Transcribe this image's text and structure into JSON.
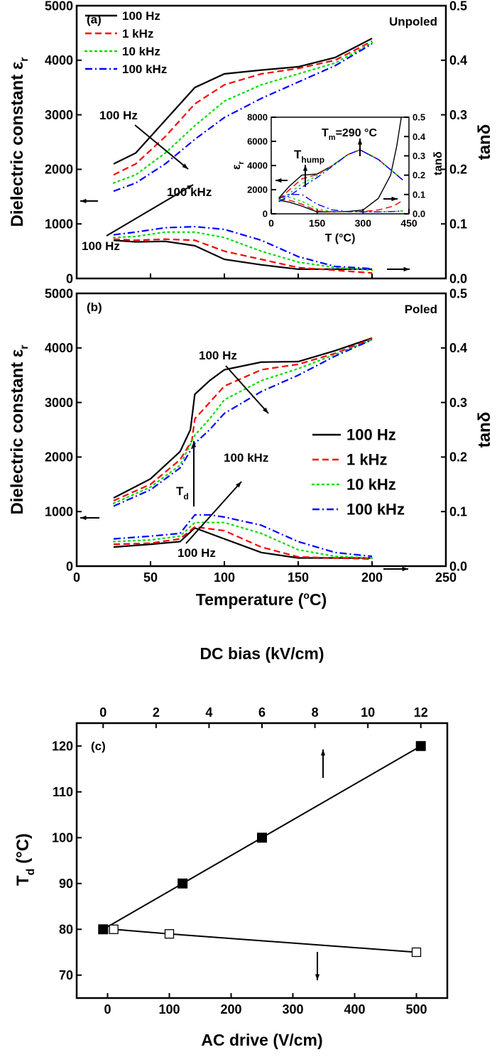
{
  "chart_data": [
    {
      "type": "line",
      "panel_label": "(a)",
      "condition": "Unpoled",
      "xlim": [
        0,
        250
      ],
      "ylabel": "Dielectric constant ε",
      "ylabel_sub": "r",
      "y2label": "tanδ",
      "ylim": [
        0,
        5000
      ],
      "y2lim": [
        0,
        0.5
      ],
      "xticks": [
        "0",
        "50",
        "100",
        "150",
        "200",
        "250"
      ],
      "yticks": [
        "0",
        "1000",
        "2000",
        "3000",
        "4000",
        "5000"
      ],
      "y2ticks": [
        "0.0",
        "0.1",
        "0.2",
        "0.3",
        "0.4",
        "0.5"
      ],
      "legend": {
        "placement": "top-left"
      },
      "series": [
        {
          "name": "100 Hz",
          "color": "#000000",
          "style": "solid",
          "eps": {
            "x": [
              25,
              40,
              60,
              80,
              100,
              125,
              150,
              175,
              200
            ],
            "y": [
              2100,
              2300,
              2900,
              3500,
              3750,
              3820,
              3880,
              4050,
              4400
            ]
          },
          "tan": {
            "x": [
              25,
              40,
              60,
              80,
              100,
              125,
              150,
              175,
              200
            ],
            "y": [
              0.07,
              0.067,
              0.068,
              0.06,
              0.035,
              0.025,
              0.017,
              0.017,
              0.017
            ]
          }
        },
        {
          "name": "1 kHz",
          "color": "#ff0000",
          "style": "dash",
          "eps": {
            "x": [
              25,
              40,
              60,
              80,
              100,
              125,
              150,
              175,
              200
            ],
            "y": [
              1900,
              2100,
              2600,
              3200,
              3550,
              3750,
              3850,
              4000,
              4350
            ]
          },
          "tan": {
            "x": [
              25,
              40,
              60,
              80,
              100,
              125,
              150,
              175,
              200
            ],
            "y": [
              0.072,
              0.07,
              0.072,
              0.07,
              0.05,
              0.035,
              0.02,
              0.015,
              0.01
            ]
          }
        },
        {
          "name": "10 kHz",
          "color": "#00dd00",
          "style": "dot",
          "eps": {
            "x": [
              25,
              40,
              60,
              80,
              100,
              125,
              150,
              175,
              200
            ],
            "y": [
              1750,
              1900,
              2300,
              2800,
              3250,
              3550,
              3750,
              3950,
              4320
            ]
          },
          "tan": {
            "x": [
              25,
              40,
              60,
              80,
              100,
              125,
              150,
              175,
              200
            ],
            "y": [
              0.075,
              0.077,
              0.085,
              0.085,
              0.075,
              0.05,
              0.03,
              0.02,
              0.015
            ]
          }
        },
        {
          "name": "100 kHz",
          "color": "#0000ff",
          "style": "dashdot",
          "eps": {
            "x": [
              25,
              40,
              60,
              80,
              100,
              125,
              150,
              175,
              200
            ],
            "y": [
              1600,
              1750,
              2100,
              2550,
              2950,
              3300,
              3600,
              3900,
              4300
            ]
          },
          "tan": {
            "x": [
              25,
              40,
              60,
              80,
              100,
              125,
              150,
              175,
              200
            ],
            "y": [
              0.08,
              0.085,
              0.093,
              0.095,
              0.09,
              0.07,
              0.04,
              0.022,
              0.018
            ]
          }
        }
      ],
      "annotations": [
        "100 Hz",
        "100 kHz",
        "100 Hz"
      ],
      "inset": {
        "xlabel": "T (°C)",
        "ylabel": "ε",
        "ylabel_sub": "r",
        "y2label": "tanδ",
        "xlim": [
          0,
          450
        ],
        "ylim": [
          0,
          8000
        ],
        "y2lim": [
          0,
          0.5
        ],
        "xticks": [
          "0",
          "150",
          "300",
          "450"
        ],
        "yticks": [
          "0",
          "2000",
          "4000",
          "6000",
          "8000"
        ],
        "y2ticks": [
          "0.0",
          "0.1",
          "0.2",
          "0.3",
          "0.4",
          "0.5"
        ],
        "hump_label": "T",
        "hump_sub": "hump",
        "tm_label": "T",
        "tm_sub": "m",
        "tm_value": "=290 °C",
        "series": [
          {
            "color": "#000000",
            "style": "solid",
            "eps": {
              "x": [
                25,
                60,
                100,
                150,
                200,
                250,
                290,
                350,
                430
              ],
              "y": [
                1300,
                2300,
                3200,
                3300,
                4000,
                4900,
                5300,
                4500,
                2800
              ]
            },
            "tan": {
              "x": [
                25,
                60,
                100,
                150,
                200,
                250,
                300,
                350,
                390,
                410,
                425
              ],
              "y": [
                0.07,
                0.06,
                0.04,
                0.01,
                0.01,
                0.012,
                0.02,
                0.08,
                0.2,
                0.35,
                0.5
              ]
            }
          },
          {
            "color": "#ff0000",
            "style": "dash",
            "eps": {
              "x": [
                25,
                60,
                100,
                150,
                200,
                250,
                290,
                350,
                430
              ],
              "y": [
                1200,
                2000,
                2900,
                3250,
                4000,
                4900,
                5300,
                4500,
                2800
              ]
            },
            "tan": {
              "x": [
                25,
                60,
                100,
                150,
                200,
                250,
                300,
                350,
                400,
                430
              ],
              "y": [
                0.075,
                0.07,
                0.05,
                0.015,
                0.01,
                0.01,
                0.012,
                0.02,
                0.04,
                0.07
              ]
            }
          },
          {
            "color": "#00dd00",
            "style": "dot",
            "eps": {
              "x": [
                25,
                60,
                100,
                150,
                200,
                250,
                290,
                350,
                430
              ],
              "y": [
                1100,
                1700,
                2500,
                3150,
                4000,
                4900,
                5300,
                4500,
                2800
              ]
            },
            "tan": {
              "x": [
                25,
                60,
                100,
                150,
                200,
                250,
                300,
                350,
                400,
                430
              ],
              "y": [
                0.08,
                0.085,
                0.065,
                0.025,
                0.012,
                0.01,
                0.01,
                0.01,
                0.012,
                0.015
              ]
            }
          },
          {
            "color": "#0000ff",
            "style": "dashdot",
            "eps": {
              "x": [
                25,
                60,
                100,
                150,
                200,
                250,
                290,
                350,
                430
              ],
              "y": [
                1000,
                1500,
                2200,
                3000,
                3950,
                4900,
                5300,
                4500,
                2800
              ]
            },
            "tan": {
              "x": [
                25,
                60,
                100,
                150,
                200,
                250,
                300,
                350,
                400,
                430
              ],
              "y": [
                0.08,
                0.1,
                0.1,
                0.05,
                0.02,
                0.012,
                0.01,
                0.01,
                0.012,
                0.015
              ]
            }
          }
        ]
      }
    },
    {
      "type": "line",
      "panel_label": "(b)",
      "condition": "Poled",
      "xlabel": "Temperature (",
      "xlabel_sup": "o",
      "xlabel_end": "C)",
      "xlim": [
        0,
        250
      ],
      "ylabel": "Dielectric constant ε",
      "ylabel_sub": "r",
      "y2label": "tanδ",
      "ylim": [
        0,
        5000
      ],
      "y2lim": [
        0,
        0.5
      ],
      "xticks": [
        "0",
        "50",
        "100",
        "150",
        "200",
        "250"
      ],
      "yticks": [
        "0",
        "1000",
        "2000",
        "3000",
        "4000",
        "5000"
      ],
      "y2ticks": [
        "0.0",
        "0.1",
        "0.2",
        "0.3",
        "0.4",
        "0.5"
      ],
      "legend": {
        "placement": "right"
      },
      "series": [
        {
          "name": "100 Hz",
          "color": "#000000",
          "style": "solid",
          "eps": {
            "x": [
              25,
              50,
              70,
              77,
              80,
              90,
              100,
              125,
              150,
              175,
              200
            ],
            "y": [
              1250,
              1600,
              2100,
              2500,
              3150,
              3400,
              3600,
              3740,
              3750,
              3950,
              4180
            ]
          },
          "tan": {
            "x": [
              25,
              50,
              70,
              80,
              100,
              125,
              150,
              175,
              200
            ],
            "y": [
              0.035,
              0.04,
              0.045,
              0.07,
              0.05,
              0.025,
              0.015,
              0.015,
              0.015
            ]
          }
        },
        {
          "name": "1 kHz",
          "color": "#ff0000",
          "style": "dash",
          "eps": {
            "x": [
              25,
              50,
              70,
              78,
              80,
              90,
              100,
              125,
              150,
              175,
              200
            ],
            "y": [
              1200,
              1500,
              1950,
              2300,
              2700,
              3000,
              3300,
              3600,
              3700,
              3900,
              4170
            ]
          },
          "tan": {
            "x": [
              25,
              50,
              70,
              80,
              100,
              125,
              150,
              175,
              200
            ],
            "y": [
              0.04,
              0.042,
              0.05,
              0.072,
              0.065,
              0.035,
              0.017,
              0.015,
              0.013
            ]
          }
        },
        {
          "name": "10 kHz",
          "color": "#00dd00",
          "style": "dot",
          "eps": {
            "x": [
              25,
              50,
              70,
              80,
              90,
              100,
              125,
              150,
              175,
              200
            ],
            "y": [
              1150,
              1450,
              1850,
              2400,
              2700,
              3050,
              3400,
              3620,
              3880,
              4150
            ]
          },
          "tan": {
            "x": [
              25,
              50,
              70,
              80,
              100,
              125,
              150,
              175,
              200
            ],
            "y": [
              0.045,
              0.048,
              0.055,
              0.08,
              0.08,
              0.06,
              0.03,
              0.018,
              0.015
            ]
          }
        },
        {
          "name": "100 kHz",
          "color": "#0000ff",
          "style": "dashdot",
          "eps": {
            "x": [
              25,
              50,
              70,
              80,
              90,
              100,
              125,
              150,
              175,
              200
            ],
            "y": [
              1100,
              1400,
              1800,
              2250,
              2500,
              2800,
              3200,
              3500,
              3850,
              4150
            ]
          },
          "tan": {
            "x": [
              25,
              50,
              70,
              80,
              90,
              100,
              125,
              150,
              175,
              200
            ],
            "y": [
              0.05,
              0.055,
              0.06,
              0.094,
              0.094,
              0.09,
              0.075,
              0.045,
              0.025,
              0.018
            ]
          }
        }
      ],
      "annotations": [
        "100 Hz",
        "100 kHz",
        "100 Hz"
      ],
      "td_label": "T",
      "td_sub": "d"
    },
    {
      "type": "scatter",
      "panel_label": "(c)",
      "xlabel": "AC drive (V/cm)",
      "x2label": "DC bias (kV/cm)",
      "ylabel": "T",
      "ylabel_sub": "d",
      "ylabel_unit": " (°C)",
      "xlim": [
        -50,
        550
      ],
      "x2lim": [
        -1,
        13
      ],
      "ylim": [
        65,
        125
      ],
      "xticks": [
        "0",
        "100",
        "200",
        "300",
        "400",
        "500"
      ],
      "x2ticks": [
        "0",
        "2",
        "4",
        "6",
        "8",
        "10",
        "12"
      ],
      "yticks": [
        "70",
        "80",
        "90",
        "100",
        "110",
        "120"
      ],
      "series": [
        {
          "axis": "DC bias",
          "marker": "filled-square",
          "x": [
            0,
            3,
            6,
            12
          ],
          "y": [
            80,
            90,
            100,
            120
          ]
        },
        {
          "axis": "AC drive",
          "marker": "open-square",
          "x": [
            10,
            100,
            500
          ],
          "y": [
            80,
            79,
            75
          ]
        }
      ]
    }
  ]
}
